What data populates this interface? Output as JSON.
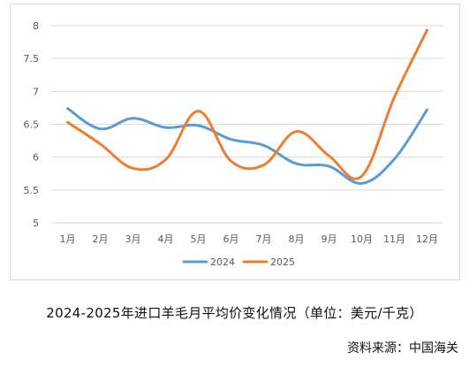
{
  "chart_data": {
    "type": "line",
    "categories": [
      "1月",
      "2月",
      "3月",
      "4月",
      "5月",
      "6月",
      "7月",
      "8月",
      "9月",
      "10月",
      "11月",
      "12月"
    ],
    "series": [
      {
        "name": "2024",
        "color": "#5b9bd5",
        "values": [
          6.74,
          6.43,
          6.59,
          6.45,
          6.48,
          6.27,
          6.18,
          5.9,
          5.86,
          5.6,
          5.97,
          6.72
        ]
      },
      {
        "name": "2025",
        "color": "#ed7d31",
        "values": [
          6.53,
          6.2,
          5.83,
          5.96,
          6.7,
          5.94,
          5.88,
          6.39,
          6.02,
          5.71,
          6.91,
          7.93
        ]
      }
    ],
    "y_ticks": [
      "5",
      "5.5",
      "6",
      "6.5",
      "7",
      "7.5",
      "8"
    ],
    "ylim": [
      5,
      8
    ],
    "grid": "horizontal",
    "legend": "bottom-center"
  },
  "caption": "2024-2025年进口羊毛月平均价变化情况（单位：美元/千克）",
  "source": "资料来源：中国海关"
}
